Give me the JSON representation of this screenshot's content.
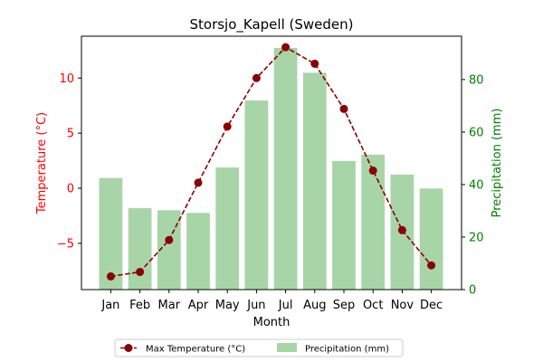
{
  "chart_data": {
    "type": "bar",
    "title": "Storsjo_Kapell (Sweden)",
    "xlabel": "Month",
    "ylabel_left": "Temperature (°C)",
    "ylabel_right": "Precipitation (mm)",
    "categories": [
      "Jan",
      "Feb",
      "Mar",
      "Apr",
      "May",
      "Jun",
      "Jul",
      "Aug",
      "Sep",
      "Oct",
      "Nov",
      "Dec"
    ],
    "series": [
      {
        "name": "Max Temperature (°C)",
        "type": "line",
        "axis": "left",
        "color": "#8b0000",
        "values": [
          -8.0,
          -7.6,
          -4.7,
          0.5,
          5.6,
          10.0,
          12.8,
          11.3,
          7.2,
          1.6,
          -3.8,
          -7.0
        ]
      },
      {
        "name": "Precipitation (mm)",
        "type": "bar",
        "axis": "right",
        "color": "#a8d5a8",
        "values": [
          42.5,
          31,
          30.2,
          29.2,
          46.5,
          72,
          92,
          82.6,
          49,
          51.4,
          43.8,
          38.5
        ]
      }
    ],
    "ylim_left": [
      -9.2,
      13.8
    ],
    "yticks_left": [
      -5,
      0,
      5,
      10
    ],
    "ytick_labels_left": [
      "−5",
      "0",
      "5",
      "10"
    ],
    "ylim_right": [
      0,
      96.5
    ],
    "yticks_right": [
      0,
      20,
      40,
      60,
      80
    ],
    "ytick_labels_right": [
      "0",
      "20",
      "40",
      "60",
      "80"
    ],
    "left_axis_color": "#ff0000",
    "right_axis_color": "#008000",
    "grid": false,
    "legend_position": "bottom-center"
  }
}
